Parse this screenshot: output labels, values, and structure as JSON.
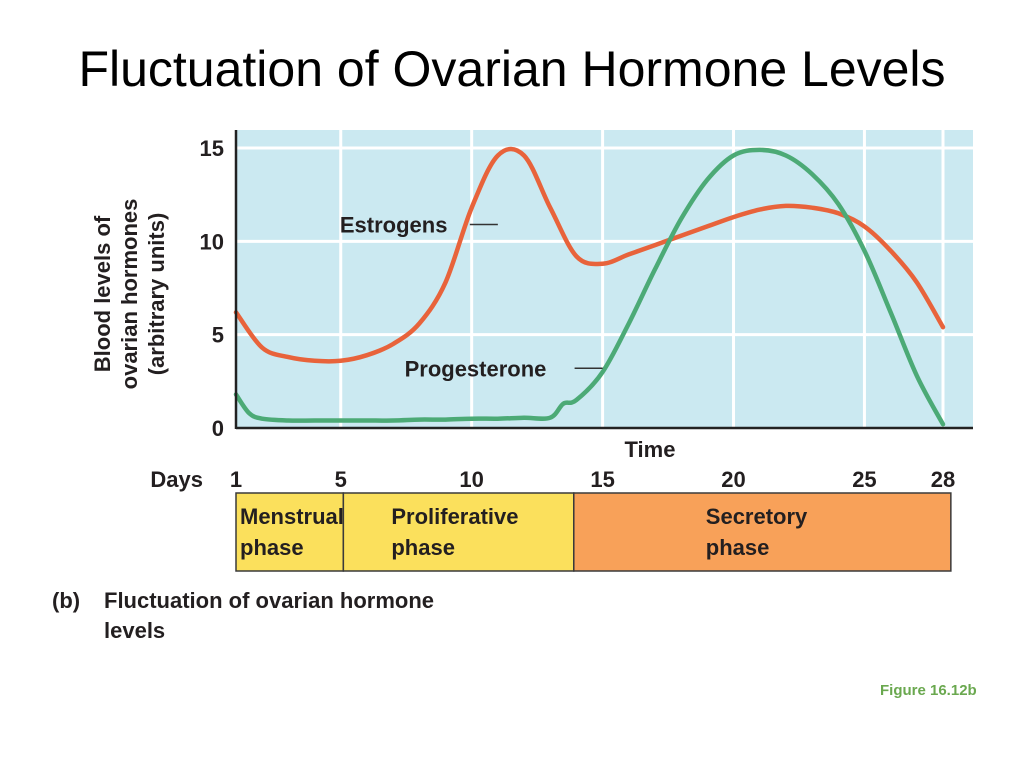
{
  "slide": {
    "title": "Fluctuation of Ovarian Hormone Levels",
    "figure_ref": "Figure 16.12b",
    "caption_tag": "(b)",
    "caption_line1": "Fluctuation of ovarian hormone",
    "caption_line2": "levels"
  },
  "colors": {
    "plot_bg": "#cbe9f1",
    "estrogens": "#e8633b",
    "progesterone": "#4caa76",
    "menstrual": "#fbe05c",
    "proliferative": "#fbe05c",
    "secretory": "#f8a159",
    "figure_ref": "#6aa84f",
    "text": "#231f20"
  },
  "chart_data": {
    "type": "line",
    "title": "",
    "xlabel": "Time",
    "ylabel": "Blood levels of ovarian hormones (arbitrary units)",
    "x_prefix": "Days",
    "xlim": [
      1,
      28.5
    ],
    "ylim": [
      0,
      16
    ],
    "x_ticks": [
      1,
      5,
      10,
      15,
      20,
      25,
      28
    ],
    "y_ticks": [
      0,
      5,
      10,
      15
    ],
    "grid": true,
    "series": [
      {
        "name": "Estrogens",
        "color": "#e8633b",
        "x": [
          1,
          2,
          3,
          4,
          5,
          6,
          7,
          8,
          9,
          10,
          11,
          12,
          13,
          14,
          15,
          16,
          17,
          18,
          19,
          20,
          21,
          22,
          23,
          24,
          25,
          26,
          27,
          28
        ],
        "y": [
          6.2,
          4.3,
          3.8,
          3.6,
          3.6,
          3.9,
          4.5,
          5.6,
          7.8,
          11.8,
          14.6,
          14.6,
          11.8,
          9.2,
          8.8,
          9.3,
          9.8,
          10.3,
          10.8,
          11.3,
          11.7,
          11.9,
          11.8,
          11.5,
          10.8,
          9.5,
          7.8,
          5.4
        ]
      },
      {
        "name": "Progesterone",
        "color": "#4caa76",
        "x": [
          1,
          1.5,
          2,
          3,
          4,
          5,
          6,
          7,
          8,
          9,
          10,
          11,
          12,
          13,
          13.5,
          14,
          15,
          16,
          17,
          18,
          19,
          20,
          21,
          22,
          23,
          24,
          25,
          26,
          27,
          28
        ],
        "y": [
          1.8,
          0.8,
          0.5,
          0.4,
          0.4,
          0.4,
          0.4,
          0.4,
          0.45,
          0.45,
          0.5,
          0.5,
          0.55,
          0.55,
          1.3,
          1.5,
          3.0,
          5.6,
          8.5,
          11.2,
          13.3,
          14.6,
          14.9,
          14.6,
          13.6,
          12.0,
          9.5,
          6.2,
          2.8,
          0.2
        ]
      }
    ],
    "series_labels": [
      {
        "name": "Estrogens",
        "anchor_x": 11.0,
        "anchor_y": 10.9
      },
      {
        "name": "Progesterone",
        "anchor_x": 15.0,
        "anchor_y": 3.2
      }
    ],
    "phases": [
      {
        "label_line1": "Menstrual",
        "label_line2": "phase",
        "start": 1,
        "end": 5.1,
        "color_key": "menstrual"
      },
      {
        "label_line1": "Proliferative",
        "label_line2": "phase",
        "start": 5.1,
        "end": 13.9,
        "color_key": "proliferative"
      },
      {
        "label_line1": "Secretory",
        "label_line2": "phase",
        "start": 13.9,
        "end": 28.3,
        "color_key": "secretory"
      }
    ]
  }
}
